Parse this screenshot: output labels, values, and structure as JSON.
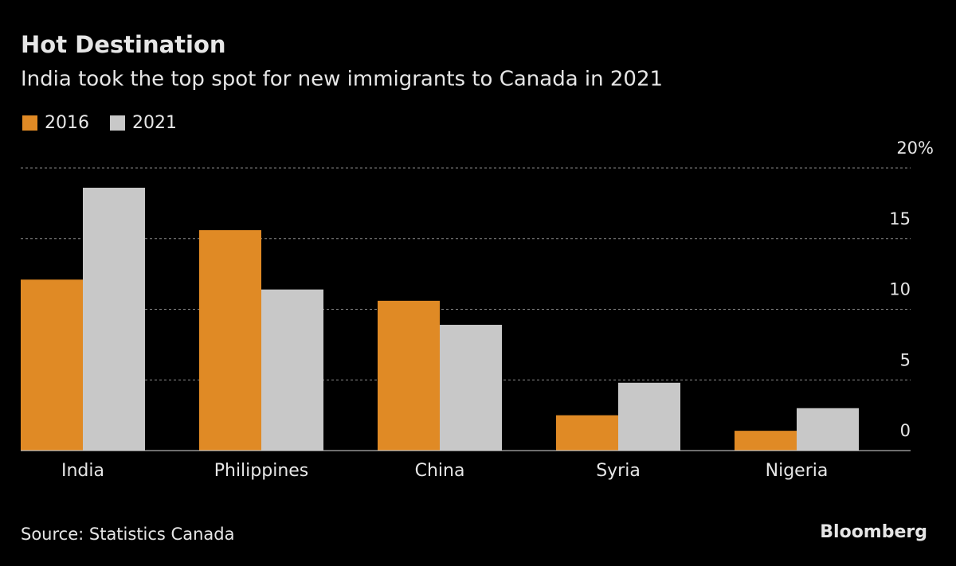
{
  "chart_data": {
    "type": "bar",
    "title": "Hot Destination",
    "subtitle": "India took the top spot for new immigrants to Canada in 2021",
    "categories": [
      "India",
      "Philippines",
      "China",
      "Syria",
      "Nigeria"
    ],
    "series": [
      {
        "name": "2016",
        "color": "#e08a25",
        "values": [
          12.1,
          15.6,
          10.6,
          2.5,
          1.4
        ]
      },
      {
        "name": "2021",
        "color": "#c8c8c8",
        "values": [
          18.6,
          11.4,
          8.9,
          4.8,
          3.0
        ]
      }
    ],
    "ylim": [
      0,
      20
    ],
    "yticks": [
      0,
      5,
      10,
      15,
      {
        "value": 20,
        "label": "20%"
      }
    ],
    "grid": true,
    "source": "Source: Statistics Canada",
    "branding": "Bloomberg"
  }
}
